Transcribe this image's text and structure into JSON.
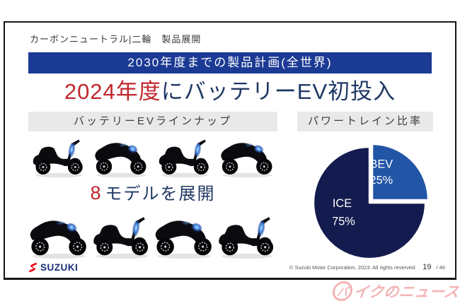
{
  "slide": {
    "kicker": "カーボンニュートラル|二輪　製品展開",
    "banner": "2030年度までの製品計画(全世界)",
    "title_highlight": "2024年度",
    "title_rest": "にバッテリーEV初投入",
    "lineup": {
      "header": "バッテリーEVラインナップ",
      "count": "8",
      "count_suffix": "モデルを展開",
      "rows": [
        [
          "scooter",
          "sportbike",
          "scooter",
          "sportbike"
        ],
        [
          "sportbike",
          "scooter",
          "sportbike",
          "scooter"
        ]
      ]
    },
    "powertrain": {
      "header": "パワートレイン比率"
    },
    "footer": {
      "brand": "SUZUKI",
      "copyright": "© Suzuki Motor Corporation, 2023. All rights reserved.",
      "page_number": "19",
      "page_total": "/ 46"
    }
  },
  "watermark": {
    "badge_char": "バ",
    "text": "イクのニュース"
  },
  "chart_data": {
    "type": "pie",
    "title": "パワートレイン比率",
    "labels": [
      "BEV",
      "ICE"
    ],
    "values": [
      25,
      75
    ],
    "value_labels": [
      "25%",
      "75%"
    ],
    "colors": [
      "#2355a6",
      "#141b4e"
    ],
    "label_color": "#ffffff",
    "start_angle_deg": 0,
    "direction": "clockwise",
    "legend": "none",
    "annotation_style": "labels inside slices, BEV slice exploded toward upper-right"
  },
  "colors": {
    "banner_bg": "#1b3a94",
    "accent_red": "#c0272d",
    "navy_text": "#1f3864",
    "section_header_bg": "#e9e9e9",
    "suzuki_red": "#e60012",
    "suzuki_blue": "#1b2e78",
    "watermark_pink": "#f3b4b4",
    "slide_border": "#161616"
  }
}
